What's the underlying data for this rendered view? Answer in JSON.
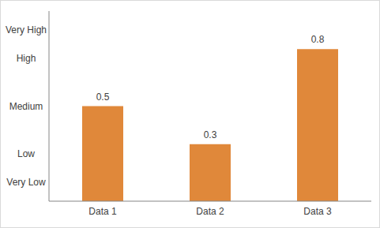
{
  "chart_data": {
    "type": "bar",
    "categories": [
      "Data 1",
      "Data 2",
      "Data 3"
    ],
    "values": [
      0.5,
      0.3,
      0.8
    ],
    "color": "#e0883a",
    "ylim": [
      0,
      1
    ],
    "yticks": [
      {
        "value": 0.1,
        "label": "Very Low"
      },
      {
        "value": 0.25,
        "label": "Low"
      },
      {
        "value": 0.5,
        "label": "Medium"
      },
      {
        "value": 0.75,
        "label": "High"
      },
      {
        "value": 0.9,
        "label": "Very High"
      }
    ],
    "grid": false,
    "data_labels": true
  }
}
